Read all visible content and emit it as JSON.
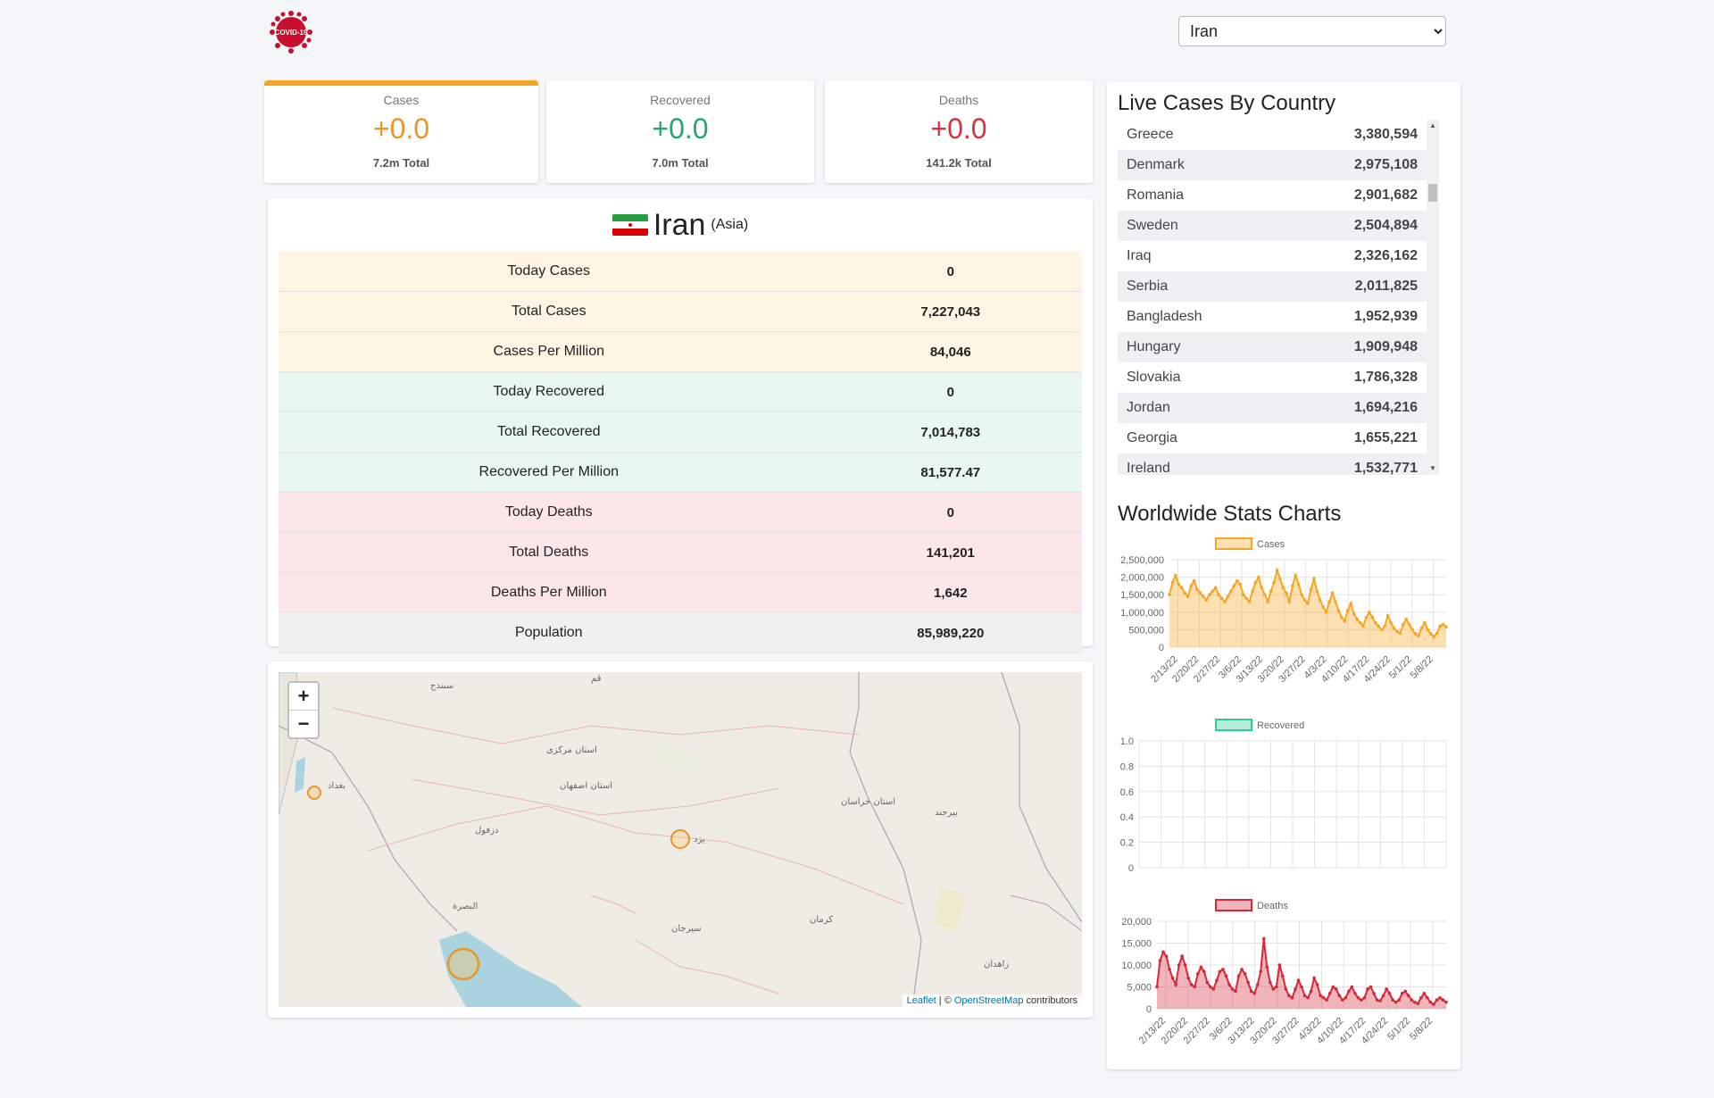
{
  "header": {
    "logo_text": "COVID-19",
    "country_select": {
      "selected": "Iran"
    }
  },
  "stats": [
    {
      "key": "cases",
      "label": "Cases",
      "value": "+0.0",
      "total": "7.2m Total",
      "color": "#e8962b"
    },
    {
      "key": "recovered",
      "label": "Recovered",
      "value": "+0.0",
      "total": "7.0m Total",
      "color": "#2ba56e"
    },
    {
      "key": "deaths",
      "label": "Deaths",
      "value": "+0.0",
      "total": "141.2k Total",
      "color": "#d63340"
    }
  ],
  "country_info": {
    "name": "Iran",
    "continent": "(Asia)",
    "rows": [
      {
        "label": "Today Cases",
        "value": "0",
        "group": "cases"
      },
      {
        "label": "Total Cases",
        "value": "7,227,043",
        "group": "cases"
      },
      {
        "label": "Cases Per Million",
        "value": "84,046",
        "group": "cases"
      },
      {
        "label": "Today Recovered",
        "value": "0",
        "group": "recovered"
      },
      {
        "label": "Total Recovered",
        "value": "7,014,783",
        "group": "recovered"
      },
      {
        "label": "Recovered Per Million",
        "value": "81,577.47",
        "group": "recovered"
      },
      {
        "label": "Today Deaths",
        "value": "0",
        "group": "deaths"
      },
      {
        "label": "Total Deaths",
        "value": "141,201",
        "group": "deaths"
      },
      {
        "label": "Deaths Per Million",
        "value": "1,642",
        "group": "deaths"
      },
      {
        "label": "Population",
        "value": "85,989,220",
        "group": "pop"
      }
    ]
  },
  "map": {
    "zoom_in": "+",
    "zoom_out": "−",
    "attribution": {
      "leaflet": "Leaflet",
      "sep": " | © ",
      "osm": "OpenStreetMap",
      "suffix": " contributors"
    }
  },
  "live_cases": {
    "title": "Live Cases By Country",
    "countries": [
      {
        "name": "Greece",
        "cases": "3,380,594"
      },
      {
        "name": "Denmark",
        "cases": "2,975,108"
      },
      {
        "name": "Romania",
        "cases": "2,901,682"
      },
      {
        "name": "Sweden",
        "cases": "2,504,894"
      },
      {
        "name": "Iraq",
        "cases": "2,326,162"
      },
      {
        "name": "Serbia",
        "cases": "2,011,825"
      },
      {
        "name": "Bangladesh",
        "cases": "1,952,939"
      },
      {
        "name": "Hungary",
        "cases": "1,909,948"
      },
      {
        "name": "Slovakia",
        "cases": "1,786,328"
      },
      {
        "name": "Jordan",
        "cases": "1,694,216"
      },
      {
        "name": "Georgia",
        "cases": "1,655,221"
      },
      {
        "name": "Ireland",
        "cases": "1,532,771"
      }
    ]
  },
  "charts_title": "Worldwide Stats Charts",
  "chart_data": [
    {
      "type": "area",
      "series": [
        {
          "name": "Cases",
          "color": "#f5a623",
          "values": [
            1500000,
            1850000,
            2050000,
            1800000,
            1700000,
            1550000,
            1450000,
            1750000,
            1900000,
            1650000,
            1550000,
            1450000,
            1350000,
            1500000,
            1600000,
            1700000,
            1500000,
            1400000,
            1300000,
            1450000,
            1600000,
            1750000,
            1900000,
            1800000,
            1500000,
            1400000,
            1300000,
            1600000,
            1850000,
            2000000,
            1700000,
            1500000,
            1300000,
            1600000,
            1850000,
            2200000,
            1950000,
            1700000,
            1550000,
            1300000,
            1750000,
            2050000,
            1800000,
            1500000,
            1350000,
            1250000,
            1650000,
            1950000,
            1600000,
            1350000,
            1150000,
            1000000,
            1300000,
            1550000,
            1300000,
            1050000,
            850000,
            750000,
            1050000,
            1250000,
            950000,
            800000,
            700000,
            600000,
            850000,
            1000000,
            850000,
            700000,
            600000,
            500000,
            600000,
            900000,
            700000,
            550000,
            450000,
            400000,
            650000,
            800000,
            650000,
            500000,
            380000,
            330000,
            550000,
            700000,
            500000,
            380000,
            300000,
            400000,
            600000,
            650000,
            580000
          ]
        }
      ],
      "x_ticks": [
        "2/13/22",
        "2/20/22",
        "2/27/22",
        "3/6/22",
        "3/13/22",
        "3/20/22",
        "3/27/22",
        "4/3/22",
        "4/10/22",
        "4/17/22",
        "4/24/22",
        "5/1/22",
        "5/8/22"
      ],
      "y_ticks": [
        "0",
        "500,000",
        "1,000,000",
        "1,500,000",
        "2,000,000",
        "2,500,000"
      ],
      "ylim": [
        0,
        2500000
      ]
    },
    {
      "type": "line",
      "series": [
        {
          "name": "Recovered",
          "color": "#2ecc8f",
          "values": []
        }
      ],
      "x_ticks": [],
      "y_ticks": [
        "0",
        "0.2",
        "0.4",
        "0.6",
        "0.8",
        "1.0"
      ],
      "ylim": [
        0,
        1
      ]
    },
    {
      "type": "area",
      "series": [
        {
          "name": "Deaths",
          "color": "#d62839",
          "values": [
            5000,
            11000,
            13000,
            12000,
            9000,
            7000,
            5500,
            10000,
            12000,
            10000,
            7000,
            5500,
            5000,
            8000,
            9500,
            8500,
            6000,
            5000,
            4500,
            6500,
            8500,
            9000,
            7500,
            5500,
            4500,
            4000,
            7500,
            9000,
            8000,
            6000,
            4000,
            3500,
            5500,
            8500,
            16000,
            9500,
            6000,
            4500,
            5000,
            10000,
            7500,
            4500,
            3000,
            2500,
            4500,
            6500,
            5000,
            3000,
            2500,
            4000,
            7000,
            5500,
            3000,
            2500,
            2000,
            3500,
            5000,
            4500,
            3000,
            2000,
            2500,
            4000,
            5000,
            3500,
            2500,
            2000,
            2500,
            4500,
            5000,
            3500,
            2000,
            1800,
            3000,
            4500,
            3500,
            2000,
            1500,
            2000,
            3500,
            4000,
            3000,
            2000,
            1500,
            1200,
            2500,
            3500,
            2500,
            1500,
            1000,
            2000,
            2500,
            2000,
            1500
          ]
        }
      ],
      "x_ticks": [
        "2/13/22",
        "2/20/22",
        "2/27/22",
        "3/6/22",
        "3/13/22",
        "3/20/22",
        "3/27/22",
        "4/3/22",
        "4/10/22",
        "4/17/22",
        "4/24/22",
        "5/1/22",
        "5/8/22"
      ],
      "y_ticks": [
        "0",
        "5,000",
        "10,000",
        "15,000",
        "20,000"
      ],
      "ylim": [
        0,
        20000
      ]
    }
  ]
}
